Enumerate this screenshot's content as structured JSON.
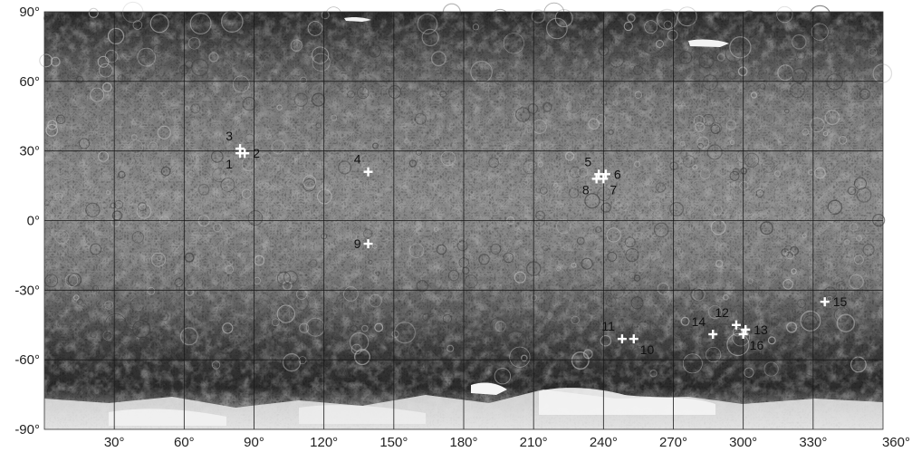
{
  "map": {
    "lat_ticks": [
      "90°",
      "60°",
      "30°",
      "0°",
      "-30°",
      "-60°",
      "-90°"
    ],
    "lon_ticks": [
      "30°",
      "60°",
      "90°",
      "120°",
      "150°",
      "180°",
      "210°",
      "240°",
      "270°",
      "300°",
      "330°",
      "360°"
    ],
    "lat_values": [
      90,
      60,
      30,
      0,
      -30,
      -60,
      -90
    ],
    "lon_values": [
      30,
      60,
      90,
      120,
      150,
      180,
      210,
      240,
      270,
      300,
      330,
      360
    ],
    "lon_range": [
      0,
      360
    ],
    "lat_range": [
      -90,
      90
    ],
    "marker_color": "#ffffff",
    "sites": [
      {
        "id": "1",
        "lon": 84,
        "lat": 29
      },
      {
        "id": "2",
        "lon": 86,
        "lat": 29
      },
      {
        "id": "3",
        "lon": 84,
        "lat": 31
      },
      {
        "id": "4",
        "lon": 139,
        "lat": 21
      },
      {
        "id": "5",
        "lon": 238,
        "lat": 20
      },
      {
        "id": "6",
        "lon": 241,
        "lat": 20
      },
      {
        "id": "7",
        "lon": 240,
        "lat": 18
      },
      {
        "id": "8",
        "lon": 237,
        "lat": 18
      },
      {
        "id": "9",
        "lon": 139,
        "lat": -10
      },
      {
        "id": "10",
        "lon": 253,
        "lat": -51
      },
      {
        "id": "11",
        "lon": 248,
        "lat": -51
      },
      {
        "id": "12",
        "lon": 297,
        "lat": -45
      },
      {
        "id": "13",
        "lon": 301,
        "lat": -47
      },
      {
        "id": "14",
        "lon": 287,
        "lat": -49
      },
      {
        "id": "15",
        "lon": 335,
        "lat": -35
      },
      {
        "id": "16",
        "lon": 300,
        "lat": -49
      }
    ],
    "label_placement": {
      "1": "lower-left",
      "2": "right",
      "3": "upper-left",
      "4": "upper-left",
      "5": "upper-left",
      "6": "right",
      "7": "lower-right",
      "8": "lower-left",
      "9": "left",
      "10": "lower-right",
      "11": "upper-left",
      "12": "upper-left",
      "13": "right",
      "14": "upper-left",
      "15": "right",
      "16": "lower-right"
    }
  }
}
